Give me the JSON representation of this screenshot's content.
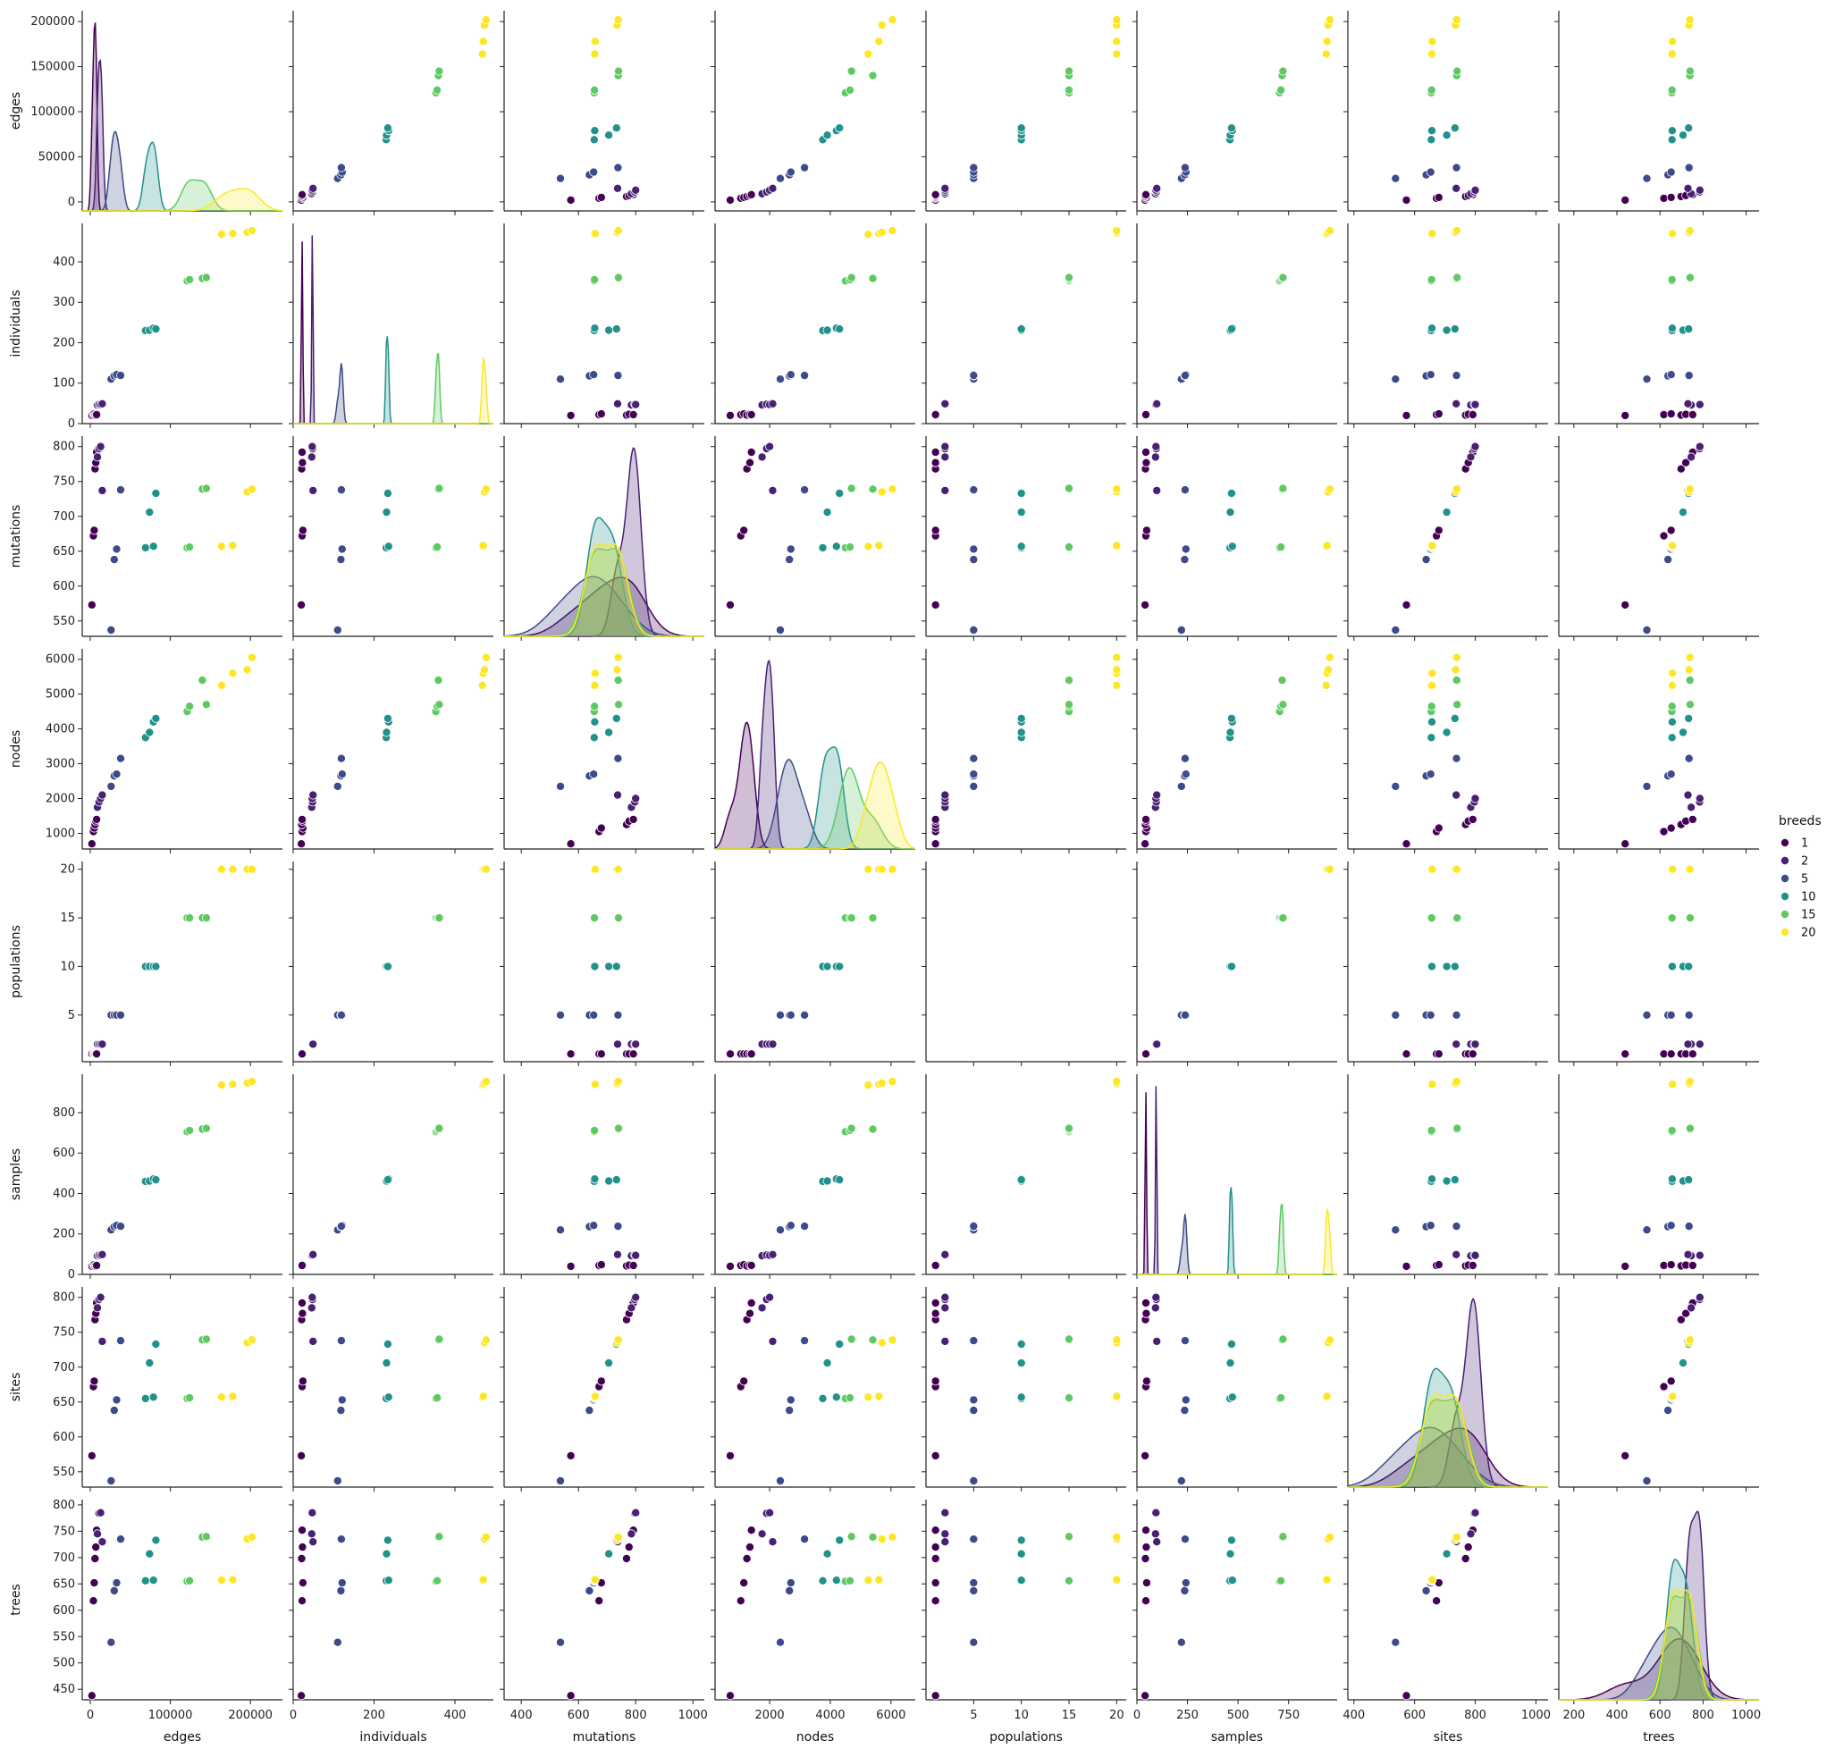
{
  "chart_data": {
    "type": "scatter",
    "variables": [
      "edges",
      "individuals",
      "mutations",
      "nodes",
      "populations",
      "samples",
      "sites",
      "trees"
    ],
    "limits": {
      "edges": [
        -10000,
        240000
      ],
      "individuals": [
        0,
        495
      ],
      "mutations": [
        340,
        1040
      ],
      "nodes": [
        200,
        6800
      ],
      "populations": [
        0,
        21
      ],
      "samples": [
        0,
        990
      ],
      "sites": [
        380,
        1040
      ],
      "trees": [
        130,
        1060
      ]
    },
    "row_ylims": {
      "edges": [
        -10000,
        212000
      ],
      "individuals": [
        0,
        495
      ],
      "mutations": [
        528,
        815
      ],
      "nodes": [
        550,
        6300
      ],
      "populations": [
        0.2,
        20.8
      ],
      "samples": [
        0,
        990
      ],
      "sites": [
        528,
        815
      ],
      "trees": [
        430,
        810
      ]
    },
    "ticks": {
      "edges": [
        0,
        100000,
        200000
      ],
      "individuals": [
        0,
        200,
        400
      ],
      "mutations": [
        400,
        600,
        800,
        1000
      ],
      "nodes": [
        2000,
        4000,
        6000
      ],
      "populations": [
        5,
        10,
        15,
        20
      ],
      "samples": [
        0,
        250,
        500,
        750,
        1000
      ],
      "sites": [
        400,
        600,
        800,
        1000
      ],
      "trees": [
        200,
        400,
        600,
        800,
        1000
      ]
    },
    "row_ticks": {
      "edges": [
        0,
        50000,
        100000,
        150000,
        200000
      ],
      "individuals": [
        0,
        100,
        200,
        300,
        400
      ],
      "mutations": [
        550,
        600,
        650,
        700,
        750,
        800
      ],
      "nodes": [
        1000,
        2000,
        3000,
        4000,
        5000,
        6000
      ],
      "populations": [
        5,
        10,
        15,
        20
      ],
      "samples": [
        0,
        200,
        400,
        600,
        800
      ],
      "sites": [
        550,
        600,
        650,
        700,
        750,
        800
      ],
      "trees": [
        450,
        500,
        550,
        600,
        650,
        700,
        750,
        800
      ]
    },
    "legend": {
      "title": "breeds",
      "placement": "right",
      "entries": [
        {
          "label": "1",
          "color": "#440154"
        },
        {
          "label": "2",
          "color": "#482173"
        },
        {
          "label": "5",
          "color": "#3e4a89"
        },
        {
          "label": "10",
          "color": "#21918c"
        },
        {
          "label": "15",
          "color": "#5ec962"
        },
        {
          "label": "20",
          "color": "#fde725"
        }
      ]
    },
    "points": [
      {
        "breeds": 1,
        "edges": 2000,
        "individuals": 20,
        "mutations": 573,
        "nodes": 700,
        "populations": 1,
        "samples": 40,
        "sites": 573,
        "trees": 438
      },
      {
        "breeds": 1,
        "edges": 4000,
        "individuals": 22,
        "mutations": 672,
        "nodes": 1050,
        "populations": 1,
        "samples": 44,
        "sites": 672,
        "trees": 618
      },
      {
        "breeds": 1,
        "edges": 5000,
        "individuals": 24,
        "mutations": 680,
        "nodes": 1150,
        "populations": 1,
        "samples": 48,
        "sites": 680,
        "trees": 652
      },
      {
        "breeds": 1,
        "edges": 6000,
        "individuals": 21,
        "mutations": 768,
        "nodes": 1250,
        "populations": 1,
        "samples": 42,
        "sites": 768,
        "trees": 698
      },
      {
        "breeds": 1,
        "edges": 7000,
        "individuals": 23,
        "mutations": 777,
        "nodes": 1350,
        "populations": 1,
        "samples": 46,
        "sites": 777,
        "trees": 720
      },
      {
        "breeds": 1,
        "edges": 8000,
        "individuals": 22,
        "mutations": 792,
        "nodes": 1400,
        "populations": 1,
        "samples": 44,
        "sites": 792,
        "trees": 752
      },
      {
        "breeds": 2,
        "edges": 9000,
        "individuals": 46,
        "mutations": 785,
        "nodes": 1750,
        "populations": 2,
        "samples": 92,
        "sites": 785,
        "trees": 745
      },
      {
        "breeds": 2,
        "edges": 11000,
        "individuals": 48,
        "mutations": 797,
        "nodes": 1900,
        "populations": 2,
        "samples": 96,
        "sites": 797,
        "trees": 784
      },
      {
        "breeds": 2,
        "edges": 13000,
        "individuals": 47,
        "mutations": 800,
        "nodes": 2000,
        "populations": 2,
        "samples": 94,
        "sites": 800,
        "trees": 785
      },
      {
        "breeds": 2,
        "edges": 15000,
        "individuals": 49,
        "mutations": 737,
        "nodes": 2100,
        "populations": 2,
        "samples": 98,
        "sites": 737,
        "trees": 730
      },
      {
        "breeds": 5,
        "edges": 26000,
        "individuals": 110,
        "mutations": 537,
        "nodes": 2350,
        "populations": 5,
        "samples": 220,
        "sites": 537,
        "trees": 539
      },
      {
        "breeds": 5,
        "edges": 30000,
        "individuals": 118,
        "mutations": 638,
        "nodes": 2650,
        "populations": 5,
        "samples": 236,
        "sites": 638,
        "trees": 637
      },
      {
        "breeds": 5,
        "edges": 33000,
        "individuals": 121,
        "mutations": 653,
        "nodes": 2700,
        "populations": 5,
        "samples": 242,
        "sites": 653,
        "trees": 652
      },
      {
        "breeds": 5,
        "edges": 38000,
        "individuals": 119,
        "mutations": 738,
        "nodes": 3150,
        "populations": 5,
        "samples": 238,
        "sites": 738,
        "trees": 735
      },
      {
        "breeds": 10,
        "edges": 69000,
        "individuals": 230,
        "mutations": 655,
        "nodes": 3750,
        "populations": 10,
        "samples": 460,
        "sites": 655,
        "trees": 656
      },
      {
        "breeds": 10,
        "edges": 74000,
        "individuals": 231,
        "mutations": 706,
        "nodes": 3900,
        "populations": 10,
        "samples": 462,
        "sites": 706,
        "trees": 707
      },
      {
        "breeds": 10,
        "edges": 79000,
        "individuals": 236,
        "mutations": 657,
        "nodes": 4200,
        "populations": 10,
        "samples": 472,
        "sites": 657,
        "trees": 657
      },
      {
        "breeds": 10,
        "edges": 82000,
        "individuals": 234,
        "mutations": 733,
        "nodes": 4300,
        "populations": 10,
        "samples": 468,
        "sites": 733,
        "trees": 733
      },
      {
        "breeds": 15,
        "edges": 121000,
        "individuals": 353,
        "mutations": 655,
        "nodes": 4500,
        "populations": 15,
        "samples": 706,
        "sites": 655,
        "trees": 655
      },
      {
        "breeds": 15,
        "edges": 124000,
        "individuals": 356,
        "mutations": 656,
        "nodes": 4650,
        "populations": 15,
        "samples": 712,
        "sites": 656,
        "trees": 656
      },
      {
        "breeds": 15,
        "edges": 140000,
        "individuals": 359,
        "mutations": 739,
        "nodes": 5400,
        "populations": 15,
        "samples": 718,
        "sites": 739,
        "trees": 739
      },
      {
        "breeds": 15,
        "edges": 145000,
        "individuals": 361,
        "mutations": 740,
        "nodes": 4700,
        "populations": 15,
        "samples": 722,
        "sites": 740,
        "trees": 740
      },
      {
        "breeds": 20,
        "edges": 164000,
        "individuals": 468,
        "mutations": 657,
        "nodes": 5250,
        "populations": 20,
        "samples": 936,
        "sites": 657,
        "trees": 657
      },
      {
        "breeds": 20,
        "edges": 178000,
        "individuals": 470,
        "mutations": 658,
        "nodes": 5600,
        "populations": 20,
        "samples": 940,
        "sites": 658,
        "trees": 658
      },
      {
        "breeds": 20,
        "edges": 196000,
        "individuals": 473,
        "mutations": 735,
        "nodes": 5700,
        "populations": 20,
        "samples": 946,
        "sites": 735,
        "trees": 735
      },
      {
        "breeds": 20,
        "edges": 202000,
        "individuals": 477,
        "mutations": 739,
        "nodes": 6050,
        "populations": 20,
        "samples": 954,
        "sites": 739,
        "trees": 739
      }
    ]
  }
}
